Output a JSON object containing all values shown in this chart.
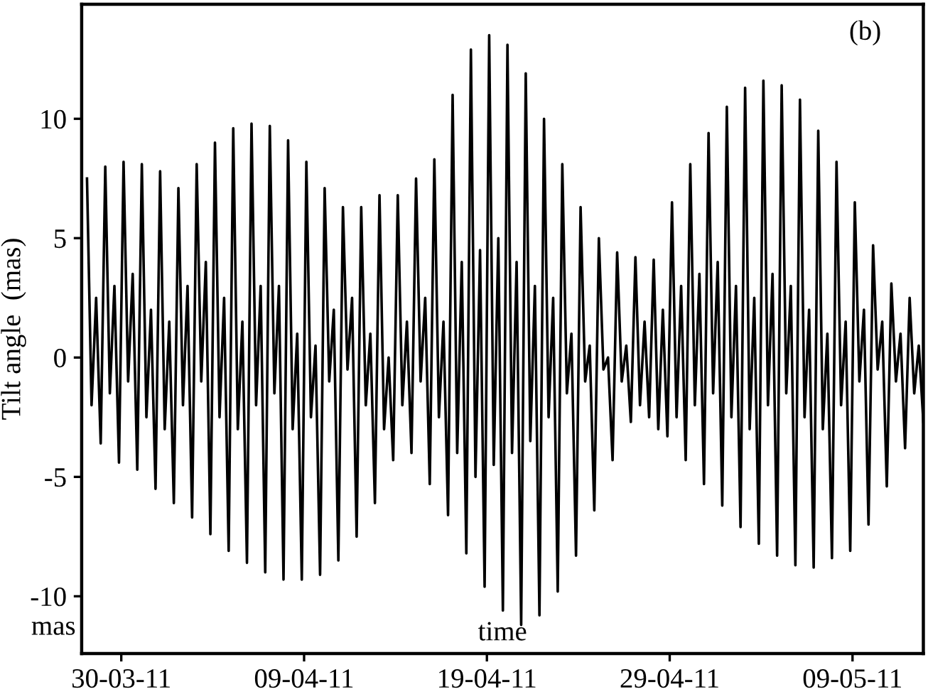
{
  "chart_data": {
    "type": "line",
    "ylabel": "Tilt angle  (mas)",
    "xlabel": "time",
    "annotations": [
      "(b)",
      "mas"
    ],
    "xlim": [
      "2011-03-27T20:00",
      "2011-05-12T21:00"
    ],
    "xticks": [
      {
        "value": "2011-03-30",
        "label": "30-03-11"
      },
      {
        "value": "2011-04-09",
        "label": "09-04-11"
      },
      {
        "value": "2011-04-19",
        "label": "19-04-11"
      },
      {
        "value": "2011-04-29",
        "label": "29-04-11"
      },
      {
        "value": "2011-05-09",
        "label": "09-05-11"
      }
    ],
    "ylim": [
      -12.4,
      14.8
    ],
    "yticks": [
      {
        "value": -10,
        "label": "-10"
      },
      {
        "value": -5,
        "label": "-5"
      },
      0,
      5,
      10
    ],
    "grid": false,
    "marker": "none",
    "line_style": "solid",
    "series": [
      {
        "color": "#000000",
        "x": [
          "2011-03-28T03:00",
          "2011-03-28T09:00",
          "2011-03-28T15:00",
          "2011-03-28T21:00",
          "2011-03-29T03:00",
          "2011-03-29T09:00",
          "2011-03-29T15:00",
          "2011-03-29T21:00",
          "2011-03-30T03:00",
          "2011-03-30T09:00",
          "2011-03-30T15:00",
          "2011-03-30T21:00",
          "2011-03-31T03:00",
          "2011-03-31T09:00",
          "2011-03-31T15:00",
          "2011-03-31T21:00",
          "2011-04-01T03:00",
          "2011-04-01T09:00",
          "2011-04-01T15:00",
          "2011-04-01T21:00",
          "2011-04-02T03:00",
          "2011-04-02T09:00",
          "2011-04-02T15:00",
          "2011-04-02T21:00",
          "2011-04-03T03:00",
          "2011-04-03T09:00",
          "2011-04-03T15:00",
          "2011-04-03T21:00",
          "2011-04-04T03:00",
          "2011-04-04T09:00",
          "2011-04-04T15:00",
          "2011-04-04T21:00",
          "2011-04-05T03:00",
          "2011-04-05T09:00",
          "2011-04-05T15:00",
          "2011-04-05T21:00",
          "2011-04-06T03:00",
          "2011-04-06T09:00",
          "2011-04-06T15:00",
          "2011-04-06T21:00",
          "2011-04-07T03:00",
          "2011-04-07T09:00",
          "2011-04-07T15:00",
          "2011-04-07T21:00",
          "2011-04-08T03:00",
          "2011-04-08T09:00",
          "2011-04-08T15:00",
          "2011-04-08T21:00",
          "2011-04-09T03:00",
          "2011-04-09T09:00",
          "2011-04-09T15:00",
          "2011-04-09T21:00",
          "2011-04-10T03:00",
          "2011-04-10T09:00",
          "2011-04-10T15:00",
          "2011-04-10T21:00",
          "2011-04-11T03:00",
          "2011-04-11T09:00",
          "2011-04-11T15:00",
          "2011-04-11T21:00",
          "2011-04-12T03:00",
          "2011-04-12T09:00",
          "2011-04-12T15:00",
          "2011-04-12T21:00",
          "2011-04-13T03:00",
          "2011-04-13T09:00",
          "2011-04-13T15:00",
          "2011-04-13T21:00",
          "2011-04-14T03:00",
          "2011-04-14T09:00",
          "2011-04-14T15:00",
          "2011-04-14T21:00",
          "2011-04-15T03:00",
          "2011-04-15T09:00",
          "2011-04-15T15:00",
          "2011-04-15T21:00",
          "2011-04-16T03:00",
          "2011-04-16T09:00",
          "2011-04-16T15:00",
          "2011-04-16T21:00",
          "2011-04-17T03:00",
          "2011-04-17T09:00",
          "2011-04-17T15:00",
          "2011-04-17T21:00",
          "2011-04-18T03:00",
          "2011-04-18T09:00",
          "2011-04-18T15:00",
          "2011-04-18T21:00",
          "2011-04-19T03:00",
          "2011-04-19T09:00",
          "2011-04-19T15:00",
          "2011-04-19T21:00",
          "2011-04-20T03:00",
          "2011-04-20T09:00",
          "2011-04-20T15:00",
          "2011-04-20T21:00",
          "2011-04-21T03:00",
          "2011-04-21T09:00",
          "2011-04-21T15:00",
          "2011-04-21T21:00",
          "2011-04-22T03:00",
          "2011-04-22T09:00",
          "2011-04-22T15:00",
          "2011-04-22T21:00",
          "2011-04-23T03:00",
          "2011-04-23T09:00",
          "2011-04-23T15:00",
          "2011-04-23T21:00",
          "2011-04-24T03:00",
          "2011-04-24T09:00",
          "2011-04-24T15:00",
          "2011-04-24T21:00",
          "2011-04-25T03:00",
          "2011-04-25T09:00",
          "2011-04-25T15:00",
          "2011-04-25T21:00",
          "2011-04-26T03:00",
          "2011-04-26T09:00",
          "2011-04-26T15:00",
          "2011-04-26T21:00",
          "2011-04-27T03:00",
          "2011-04-27T09:00",
          "2011-04-27T15:00",
          "2011-04-27T21:00",
          "2011-04-28T03:00",
          "2011-04-28T09:00",
          "2011-04-28T15:00",
          "2011-04-28T21:00",
          "2011-04-29T03:00",
          "2011-04-29T09:00",
          "2011-04-29T15:00",
          "2011-04-29T21:00",
          "2011-04-30T03:00",
          "2011-04-30T09:00",
          "2011-04-30T15:00",
          "2011-04-30T21:00",
          "2011-05-01T03:00",
          "2011-05-01T09:00",
          "2011-05-01T15:00",
          "2011-05-01T21:00",
          "2011-05-02T03:00",
          "2011-05-02T09:00",
          "2011-05-02T15:00",
          "2011-05-02T21:00",
          "2011-05-03T03:00",
          "2011-05-03T09:00",
          "2011-05-03T15:00",
          "2011-05-03T21:00",
          "2011-05-04T03:00",
          "2011-05-04T09:00",
          "2011-05-04T15:00",
          "2011-05-04T21:00",
          "2011-05-05T03:00",
          "2011-05-05T09:00",
          "2011-05-05T15:00",
          "2011-05-05T21:00",
          "2011-05-06T03:00",
          "2011-05-06T09:00",
          "2011-05-06T15:00",
          "2011-05-06T21:00",
          "2011-05-07T03:00",
          "2011-05-07T09:00",
          "2011-05-07T15:00",
          "2011-05-07T21:00",
          "2011-05-08T03:00",
          "2011-05-08T09:00",
          "2011-05-08T15:00",
          "2011-05-08T21:00",
          "2011-05-09T03:00",
          "2011-05-09T09:00",
          "2011-05-09T15:00",
          "2011-05-09T21:00",
          "2011-05-10T03:00",
          "2011-05-10T09:00",
          "2011-05-10T15:00",
          "2011-05-10T21:00",
          "2011-05-11T03:00",
          "2011-05-11T09:00",
          "2011-05-11T15:00",
          "2011-05-11T21:00",
          "2011-05-12T03:00",
          "2011-05-12T09:00",
          "2011-05-12T15:00",
          "2011-05-12T21:00"
        ],
        "values": [
          7.5,
          -2.0,
          2.5,
          -3.6,
          8.0,
          -1.5,
          3.0,
          -4.4,
          8.2,
          -1.0,
          3.5,
          -4.7,
          8.1,
          -2.5,
          2.0,
          -5.5,
          7.8,
          -3.0,
          1.5,
          -6.1,
          7.1,
          -2.0,
          3.0,
          -6.7,
          8.1,
          -1.0,
          4.0,
          -7.4,
          9.0,
          -2.5,
          2.5,
          -8.1,
          9.6,
          -3.0,
          1.5,
          -8.6,
          9.8,
          -2.0,
          3.0,
          -9.0,
          9.7,
          -1.5,
          3.0,
          -9.3,
          9.1,
          -3.0,
          1.0,
          -9.3,
          8.2,
          -2.5,
          0.5,
          -9.1,
          7.1,
          -1.0,
          2.0,
          -8.5,
          6.3,
          -0.5,
          2.5,
          -7.5,
          6.3,
          -2.0,
          1.0,
          -6.1,
          6.8,
          -3.0,
          0.0,
          -4.3,
          6.8,
          -2.0,
          1.5,
          -4.0,
          7.5,
          -1.0,
          2.5,
          -5.3,
          8.3,
          -2.5,
          1.5,
          -6.6,
          11.0,
          -4.0,
          4.0,
          -8.2,
          12.9,
          -5.0,
          4.5,
          -9.6,
          13.5,
          -4.5,
          5.0,
          -10.6,
          13.1,
          -4.0,
          4.0,
          -11.2,
          11.9,
          -3.5,
          3.0,
          -10.8,
          10.0,
          -2.5,
          2.5,
          -9.8,
          8.1,
          -1.5,
          1.0,
          -8.3,
          6.3,
          -1.0,
          0.5,
          -6.4,
          5.0,
          -0.5,
          0.0,
          -4.3,
          4.4,
          -1.0,
          0.5,
          -2.7,
          4.2,
          -2.0,
          1.5,
          -2.5,
          4.1,
          -3.0,
          2.0,
          -3.3,
          6.5,
          -2.5,
          3.0,
          -4.3,
          8.1,
          -2.0,
          3.5,
          -5.3,
          9.4,
          -1.5,
          4.0,
          -6.2,
          10.5,
          -2.5,
          3.0,
          -7.1,
          11.3,
          -3.0,
          2.5,
          -7.8,
          11.6,
          -2.0,
          3.5,
          -8.3,
          11.4,
          -1.5,
          3.0,
          -8.7,
          10.8,
          -2.5,
          2.0,
          -8.8,
          9.5,
          -3.0,
          1.0,
          -8.4,
          8.2,
          -2.0,
          1.5,
          -8.1,
          6.5,
          -1.0,
          2.0,
          -7.0,
          4.7,
          -0.5,
          1.5,
          -5.4,
          3.1,
          -1.0,
          1.0,
          -3.8,
          2.5,
          -1.5,
          0.5,
          -2.7
        ]
      }
    ]
  }
}
